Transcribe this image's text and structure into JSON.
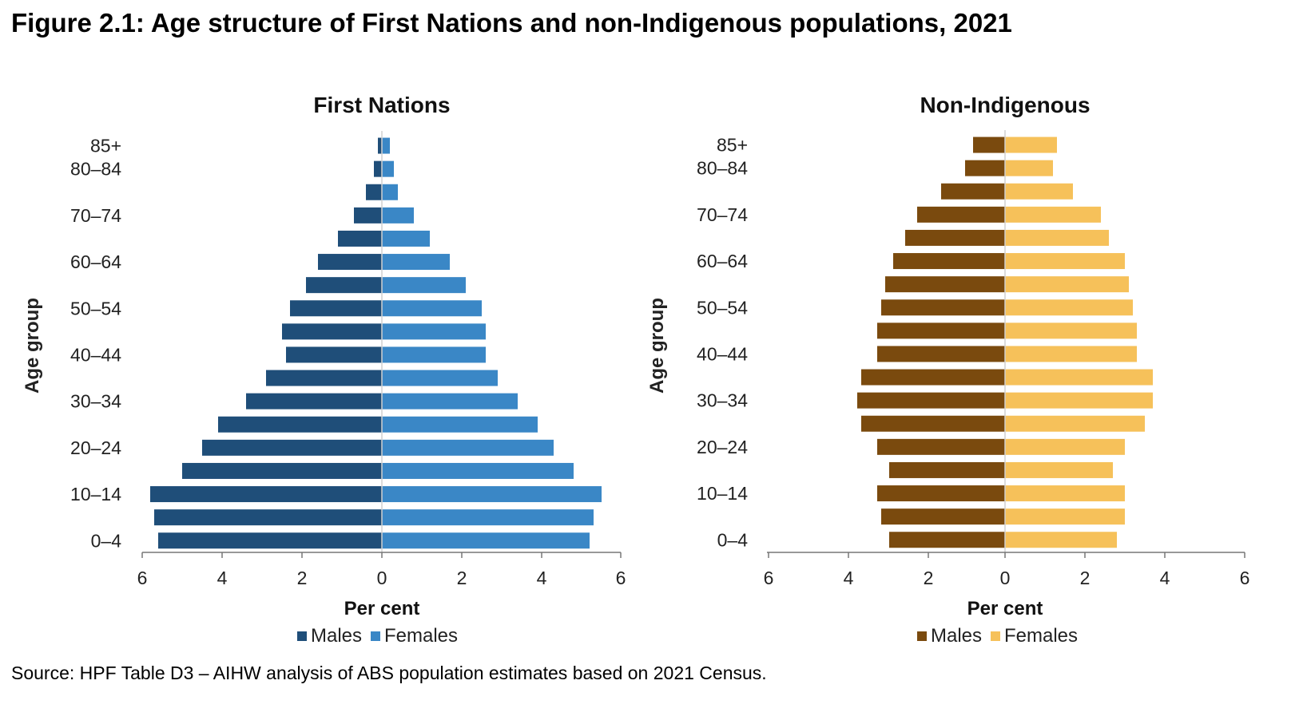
{
  "figure_title": "Figure 2.1: Age structure of First Nations and non-Indigenous populations, 2021",
  "source": "Source: HPF Table D3 – AIHW analysis of ABS population estimates based on 2021 Census.",
  "chart_data": [
    {
      "type": "bar",
      "orientation": "horizontal-pyramid",
      "title": "First Nations",
      "xlabel": "Per cent",
      "ylabel": "Age group",
      "xlim": [
        -6,
        6
      ],
      "xticks": [
        "6",
        "4",
        "2",
        "0",
        "2",
        "4",
        "6"
      ],
      "categories": [
        "0–4",
        "5–9",
        "10–14",
        "15–19",
        "20–24",
        "25–29",
        "30–34",
        "35–39",
        "40–44",
        "45–49",
        "50–54",
        "55–59",
        "60–64",
        "65–69",
        "70–74",
        "75–79",
        "80–84",
        "85+"
      ],
      "category_labels": [
        "0–4",
        "",
        "10–14",
        "",
        "20–24",
        "",
        "30–34",
        "",
        "40–44",
        "",
        "50–54",
        "",
        "60–64",
        "",
        "70–74",
        "",
        "80–84",
        "85+"
      ],
      "series": [
        {
          "name": "Males",
          "color": "#1f4e79",
          "values": [
            5.6,
            5.7,
            5.8,
            5.0,
            4.5,
            4.1,
            3.4,
            2.9,
            2.4,
            2.5,
            2.3,
            1.9,
            1.6,
            1.1,
            0.7,
            0.4,
            0.2,
            0.1
          ]
        },
        {
          "name": "Females",
          "color": "#3a87c6",
          "values": [
            5.2,
            5.3,
            5.5,
            4.8,
            4.3,
            3.9,
            3.4,
            2.9,
            2.6,
            2.6,
            2.5,
            2.1,
            1.7,
            1.2,
            0.8,
            0.4,
            0.3,
            0.2
          ]
        }
      ],
      "legend": [
        "Males",
        "Females"
      ]
    },
    {
      "type": "bar",
      "orientation": "horizontal-pyramid",
      "title": "Non-Indigenous",
      "xlabel": "Per cent",
      "ylabel": "Age group",
      "xlim": [
        -6,
        6
      ],
      "xticks": [
        "6",
        "4",
        "2",
        "0",
        "2",
        "4",
        "6"
      ],
      "categories": [
        "0–4",
        "5–9",
        "10–14",
        "15–19",
        "20–24",
        "25–29",
        "30–34",
        "35–39",
        "40–44",
        "45–49",
        "50–54",
        "55–59",
        "60–64",
        "65–69",
        "70–74",
        "75–79",
        "80–84",
        "85+"
      ],
      "category_labels": [
        "0–4",
        "",
        "10–14",
        "",
        "20–24",
        "",
        "30–34",
        "",
        "40–44",
        "",
        "50–54",
        "",
        "60–64",
        "",
        "70–74",
        "",
        "80–84",
        "85+"
      ],
      "series": [
        {
          "name": "Males",
          "color": "#7a4a0e",
          "values": [
            2.9,
            3.1,
            3.2,
            2.9,
            3.2,
            3.6,
            3.7,
            3.6,
            3.2,
            3.2,
            3.1,
            3.0,
            2.8,
            2.5,
            2.2,
            1.6,
            1.0,
            0.8
          ]
        },
        {
          "name": "Females",
          "color": "#f6c15a",
          "values": [
            2.8,
            3.0,
            3.0,
            2.7,
            3.0,
            3.5,
            3.7,
            3.7,
            3.3,
            3.3,
            3.2,
            3.1,
            3.0,
            2.6,
            2.4,
            1.7,
            1.2,
            1.3
          ]
        }
      ],
      "legend": [
        "Males",
        "Females"
      ]
    }
  ]
}
